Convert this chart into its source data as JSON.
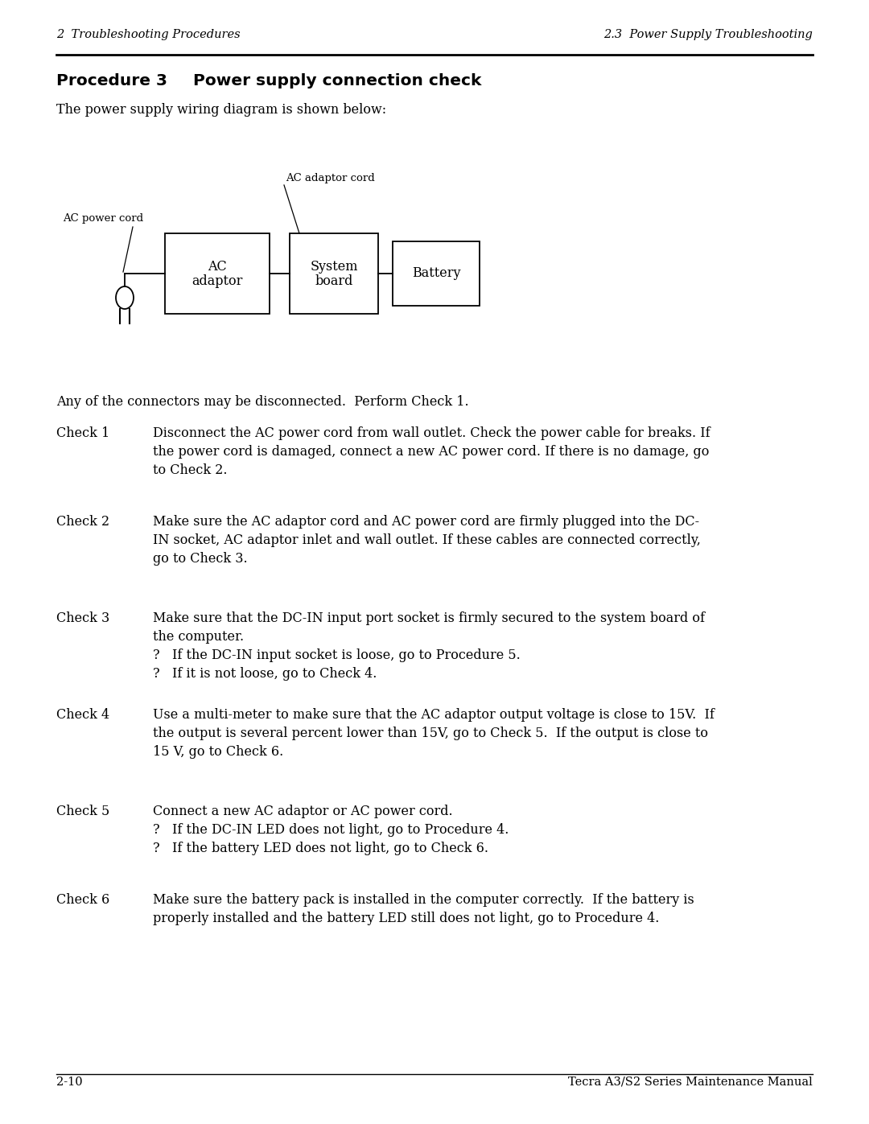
{
  "bg_color": "#ffffff",
  "header_left": "2  Troubleshooting Procedures",
  "header_right": "2.3  Power Supply Troubleshooting",
  "footer_left": "2-10",
  "footer_right": "Tecra A3/S2 Series Maintenance Manual",
  "intro_text": "The power supply wiring diagram is shown below:",
  "diagram_label_ac_power": "AC power cord",
  "diagram_label_ac_adaptor_cord": "AC adaptor cord",
  "diagram_box1_line1": "AC",
  "diagram_box1_line2": "adaptor",
  "diagram_box2_line1": "System",
  "diagram_box2_line2": "board",
  "diagram_box3_line1": "Battery",
  "connector_note": "Any of the connectors may be disconnected.  Perform Check 1.",
  "checks": [
    {
      "label": "Check 1",
      "text": "Disconnect the AC power cord from wall outlet. Check the power cable for breaks. If\nthe power cord is damaged, connect a new AC power cord. If there is no damage, go\nto Check 2."
    },
    {
      "label": "Check 2",
      "text": "Make sure the AC adaptor cord and AC power cord are firmly plugged into the DC-\nIN socket, AC adaptor inlet and wall outlet. If these cables are connected correctly,\ngo to Check 3."
    },
    {
      "label": "Check 3",
      "text": "Make sure that the DC-IN input port socket is firmly secured to the system board of\nthe computer.\n?   If the DC-IN input socket is loose, go to Procedure 5.\n?   If it is not loose, go to Check 4."
    },
    {
      "label": "Check 4",
      "text": "Use a multi‑meter to make sure that the AC adaptor output voltage is close to 15V.  If\nthe output is several percent lower than 15V, go to Check 5.  If the output is close to\n15 V, go to Check 6."
    },
    {
      "label": "Check 5",
      "text": "Connect a new AC adaptor or AC power cord.\n?   If the DC-IN LED does not light, go to Procedure 4.\n?   If the battery LED does not light, go to Check 6."
    },
    {
      "label": "Check 6",
      "text": "Make sure the battery pack is installed in the computer correctly.  If the battery is\nproperly installed and the battery LED still does not light, go to Procedure 4."
    }
  ]
}
